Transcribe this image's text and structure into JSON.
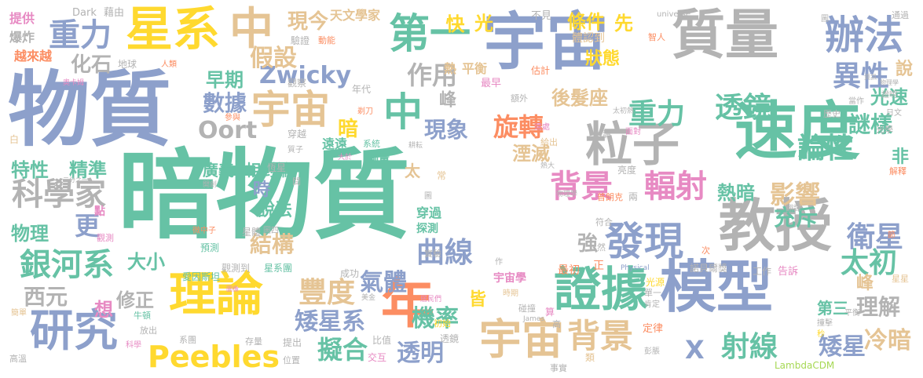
{
  "palette": {
    "green": "#66c2a5",
    "orange": "#fc8d62",
    "blue": "#8da0cb",
    "pink": "#e78ac3",
    "lime": "#a6d854",
    "yellow": "#ffd92f",
    "tan": "#e5c494",
    "gray": "#b3b3b3"
  },
  "words": {
    "w001": "暗物質",
    "w002": "物質",
    "w003": "速度",
    "w004": "宇宙",
    "w005": "質量",
    "w006": "教授",
    "w007": "模型",
    "w008": "星系",
    "w009": "證據",
    "w010": "理論",
    "w011": "粒子",
    "w012": "年",
    "w013": "宇宙",
    "w014": "中",
    "w015": "研究",
    "w016": "宇宙",
    "w017": "中",
    "w018": "第一",
    "w019": "辦法",
    "w020": "重力",
    "w021": "發現",
    "w022": "背景",
    "w023": "背景",
    "w024": "輻射",
    "w025": "銀河系",
    "w026": "科學家",
    "w027": "Peebles",
    "w028": "Zwicky",
    "w029": "Oort",
    "w030": "重力",
    "w031": "透鏡",
    "w032": "異性",
    "w033": "旋轉",
    "w034": "曲線",
    "w035": "論性",
    "w036": "謎樣",
    "w037": "影響",
    "w038": "衛星",
    "w039": "太初",
    "w040": "理解",
    "w041": "矮星",
    "w042": "X",
    "w043": "射線",
    "w044": "冷暗",
    "w045": "擬合",
    "w046": "矮星系",
    "w047": "豐度",
    "w048": "機率",
    "w049": "透明",
    "w050": "氣體",
    "w051": "結構",
    "w052": "假設",
    "w053": "作用",
    "w054": "現象",
    "w055": "數據",
    "w056": "早期",
    "w057": "化石",
    "w058": "特性",
    "w059": "精準",
    "w060": "物理",
    "w061": "更",
    "w062": "大小",
    "w063": "西元",
    "w064": "修正",
    "w065": "想",
    "w066": "光速",
    "w067": "充斥",
    "w068": "熱暗",
    "w069": "快",
    "w070": "光",
    "w071": "條件",
    "w072": "狀態",
    "w073": "先",
    "w074": "現今",
    "w075": "天文學家",
    "w076": "後髮座",
    "w077": "廣義",
    "w078": "相對論",
    "w079": "說法",
    "w080": "時",
    "w081": "峰",
    "w082": "暗",
    "w083": "湮滅",
    "w084": "強",
    "w085": "太",
    "w086": "第三",
    "w087": "峰",
    "w088": "宇宙學",
    "w089": "皆",
    "w090": "非",
    "w091": "說",
    "w092": "提供",
    "w093": "爆炸",
    "w094": "越來越",
    "w095": "Dark",
    "w096": "藉由",
    "w097": "不見",
    "w098": "universe",
    "w099": "通過",
    "w100": "體認到",
    "w101": "驗證",
    "w102": "動能",
    "w103": "熱",
    "w104": "平衡",
    "w105": "估計",
    "w106": "智人",
    "w107": "地球",
    "w108": "人類",
    "w109": "奧卡姆",
    "w110": "觀察",
    "w111": "年代",
    "w112": "最早",
    "w113": "額外",
    "w114": "證明",
    "w115": "物理學",
    "w116": "當作",
    "w117": "歷史",
    "w118": "日文",
    "w119": "光學",
    "w120": "參與",
    "w121": "剃刀",
    "w122": "穿越",
    "w123": "遠遠",
    "w124": "系統",
    "w125": "大於",
    "w126": "測量",
    "w127": "質子",
    "w128": "恆星",
    "w129": "點",
    "w130": "觀測",
    "w131": "星體",
    "w132": "圖四",
    "w133": "微中子",
    "w134": "預測",
    "w135": "愛因斯坦",
    "w136": "觀測到",
    "w137": "星系團",
    "w138": "成功",
    "w139": "穿過",
    "w140": "探測",
    "w141": "實驗",
    "w142": "作",
    "w143": "時期",
    "w144": "碰撞",
    "w145": "算",
    "w146": "最初",
    "w147": "正",
    "w148": "光源",
    "w149": "單一",
    "w150": "肯定",
    "w151": "定律",
    "w152": "撞擊",
    "w153": "秒",
    "w154": "Physical",
    "w155": "告訴",
    "w156": "工作",
    "w157": "諾貝爾獎",
    "w158": "次",
    "w159": "符合",
    "w160": "然",
    "w161": "普朗克",
    "w162": "兩",
    "w163": "亮度",
    "w164": "討論",
    "w165": "面對",
    "w166": "太初熱",
    "w167": "熱大",
    "w168": "常",
    "w169": "圖",
    "w170": "LambdaCDM",
    "w171": "彭脹",
    "w172": "類",
    "w173": "事實",
    "w174": "比值",
    "w175": "交互",
    "w176": "位置",
    "w177": "提出",
    "w178": "存量",
    "w179": "系團",
    "w180": "放出",
    "w181": "科學",
    "w182": "高溫",
    "w183": "簡單",
    "w184": "James",
    "w185": "高",
    "w186": "居民們",
    "w187": "初始",
    "w188": "美金",
    "w189": "透鏡",
    "w190": "給出",
    "w191": "遠處",
    "w192": "耕耘",
    "w193": "間",
    "w194": "開創",
    "w195": "二分之一",
    "w196": "白",
    "w197": "解釋",
    "w198": "節",
    "w199": "星星",
    "w200": "平衡",
    "w201": "翻譯",
    "w202": "牛頓",
    "w203": "圖",
    "w204": "圖像",
    "w205": "物理學",
    "w206": "資訊"
  }
}
